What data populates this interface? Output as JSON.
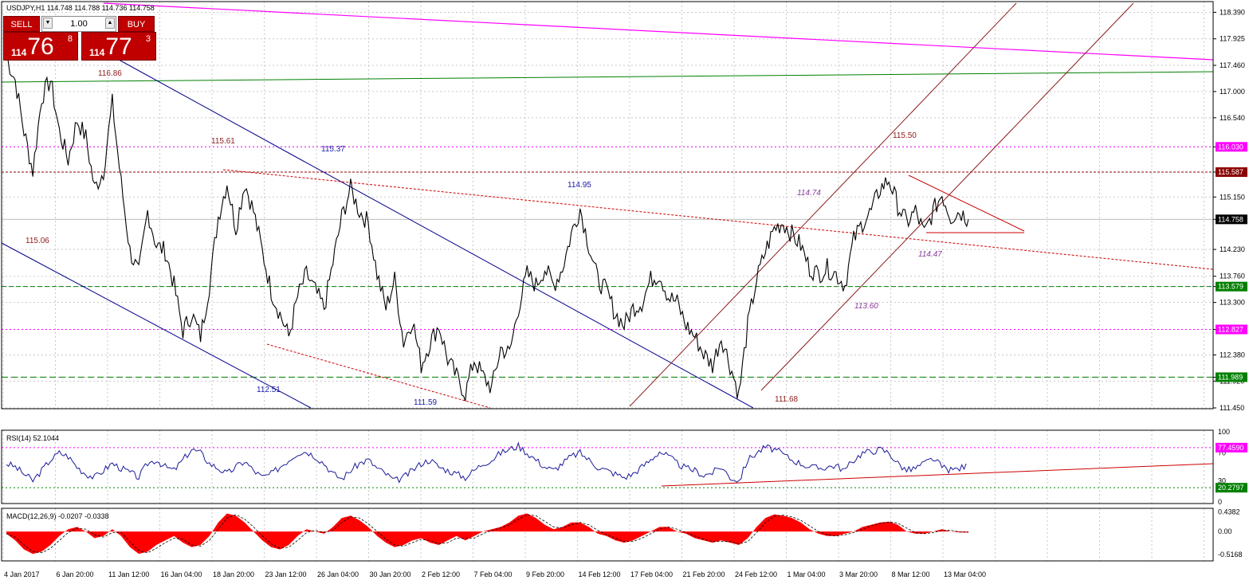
{
  "header": {
    "title": "USDJPY,H1",
    "ohlc": "114.748 114.788 114.736 114.758"
  },
  "trade_panel": {
    "sell_label": "SELL",
    "buy_label": "BUY",
    "lot": "1.00",
    "sell_prefix": "114",
    "sell_big": "76",
    "sell_pip": "8",
    "buy_prefix": "114",
    "buy_big": "77",
    "buy_pip": "3",
    "color": "#c00000"
  },
  "chart_data": [
    {
      "type": "line",
      "title": "USDJPY,H1",
      "ylim": [
        111.45,
        118.55
      ],
      "y_ticks": [
        "118.390",
        "117.925",
        "117.460",
        "117.000",
        "116.540",
        "116.030",
        "115.587",
        "115.150",
        "114.758",
        "114.230",
        "113.760",
        "113.579",
        "113.300",
        "112.827",
        "112.380",
        "111.989",
        "111.920",
        "111.450"
      ],
      "x_ticks": [
        "4 Jan 2017",
        "6 Jan 20:00",
        "11 Jan 12:00",
        "16 Jan 04:00",
        "18 Jan 20:00",
        "23 Jan 12:00",
        "26 Jan 04:00",
        "30 Jan 20:00",
        "2 Feb 12:00",
        "7 Feb 04:00",
        "9 Feb 20:00",
        "14 Feb 12:00",
        "17 Feb 04:00",
        "21 Feb 20:00",
        "24 Feb 12:00",
        "1 Mar 04:00",
        "3 Mar 20:00",
        "8 Mar 12:00",
        "13 Mar 04:00"
      ],
      "series": [
        {
          "values": [
            117.6,
            117.2,
            116.3,
            115.6,
            116.9,
            117.2,
            116.3,
            115.8,
            116.5,
            116.2,
            115.3,
            115.6,
            116.8,
            115.4,
            114.2,
            113.8,
            114.9,
            114.3,
            114.2,
            113.6,
            112.8,
            113.1,
            112.7,
            113.6,
            114.8,
            115.4,
            114.6,
            115.4,
            114.9,
            114.2,
            113.5,
            113.1,
            112.7,
            113.4,
            113.8,
            113.5,
            113.2,
            114.0,
            114.8,
            115.3,
            114.9,
            114.7,
            113.8,
            113.2,
            113.7,
            112.6,
            113.0,
            112.2,
            112.6,
            112.9,
            112.3,
            112.0,
            111.7,
            112.3,
            112.0,
            111.8,
            112.5,
            112.4,
            113.2,
            113.8,
            113.6,
            113.9,
            113.6,
            113.9,
            114.5,
            114.95,
            114.3,
            113.7,
            113.5,
            113.1,
            112.9,
            113.2,
            113.3,
            113.7,
            113.8,
            113.4,
            113.3,
            112.9,
            112.7,
            112.4,
            112.2,
            112.7,
            112.2,
            111.68,
            112.9,
            113.7,
            114.2,
            114.6,
            114.7,
            114.5,
            114.3,
            113.9,
            113.8,
            113.9,
            113.8,
            113.6,
            114.4,
            114.7,
            114.9,
            115.3,
            115.45,
            115.0,
            114.7,
            114.9,
            114.5,
            114.9,
            115.2,
            114.8,
            114.9,
            114.758
          ]
        }
      ],
      "annotations": [
        "116.86",
        "115.61",
        "115.37",
        "115.06",
        "114.95",
        "114.74",
        "114.47",
        "115.50",
        "113.60",
        "112.51",
        "111.59",
        "111.68"
      ],
      "price_tags": [
        {
          "label": "116.030",
          "price": 116.03,
          "color": "#ff00ff"
        },
        {
          "label": "115.587",
          "price": 115.587,
          "color": "#8b0000"
        },
        {
          "label": "114.758",
          "price": 114.758,
          "color": "#000000"
        },
        {
          "label": "113.579",
          "price": 113.579,
          "color": "#008000"
        },
        {
          "label": "112.827",
          "price": 112.827,
          "color": "#ff00ff"
        },
        {
          "label": "111.989",
          "price": 111.989,
          "color": "#008000"
        }
      ],
      "grid": true
    },
    {
      "type": "line",
      "title": "RSI(14) 52.1044",
      "ylim": [
        0,
        100
      ],
      "y_ticks": [
        "100",
        "70",
        "30",
        "0"
      ],
      "levels": [
        {
          "label": "77.4590",
          "value": 77.459,
          "color": "#ff00ff"
        },
        {
          "label": "20.2797",
          "value": 20.2797,
          "color": "#008000"
        }
      ],
      "series": [
        {
          "values": [
            55,
            50,
            40,
            30,
            45,
            60,
            70,
            65,
            50,
            40,
            35,
            45,
            55,
            48,
            42,
            35,
            55,
            60,
            50,
            45,
            60,
            75,
            70,
            55,
            48,
            40,
            50,
            58,
            45,
            35,
            40,
            50,
            60,
            70,
            72,
            65,
            55,
            40,
            33,
            45,
            55,
            60,
            48,
            40,
            30,
            35,
            45,
            55,
            60,
            50,
            45,
            40,
            35,
            45,
            55,
            60,
            70,
            75,
            80,
            70,
            60,
            50,
            45,
            55,
            65,
            70,
            60,
            50,
            45,
            40,
            35,
            40,
            50,
            60,
            72,
            65,
            55,
            48,
            45,
            38,
            42,
            50,
            35,
            30,
            60,
            70,
            78,
            75,
            68,
            60,
            55,
            50,
            48,
            50,
            52,
            45,
            60,
            70,
            72,
            75,
            70,
            55,
            45,
            48,
            55,
            62,
            50,
            45,
            48,
            52.1044
          ]
        }
      ],
      "grid": true
    },
    {
      "type": "area",
      "title": "MACD(12,26,9) -0.0207 -0.0338",
      "ylim": [
        -0.62,
        0.48
      ],
      "y_ticks": [
        "0.4382",
        "0.00",
        "-0.5168"
      ],
      "series": [
        {
          "values": [
            -0.05,
            -0.2,
            -0.4,
            -0.5,
            -0.45,
            -0.3,
            -0.1,
            0.05,
            0.1,
            0.0,
            -0.15,
            -0.1,
            0.05,
            -0.1,
            -0.35,
            -0.5,
            -0.45,
            -0.3,
            -0.2,
            -0.1,
            -0.25,
            -0.35,
            -0.3,
            -0.1,
            0.2,
            0.4,
            0.35,
            0.2,
            0.0,
            -0.2,
            -0.35,
            -0.4,
            -0.3,
            -0.1,
            0.05,
            0.0,
            -0.05,
            0.1,
            0.3,
            0.35,
            0.25,
            0.1,
            -0.1,
            -0.25,
            -0.35,
            -0.3,
            -0.2,
            -0.15,
            -0.25,
            -0.3,
            -0.2,
            -0.1,
            -0.2,
            -0.1,
            0.0,
            0.05,
            0.1,
            0.2,
            0.35,
            0.4,
            0.3,
            0.15,
            0.05,
            0.1,
            0.2,
            0.2,
            0.1,
            -0.05,
            -0.1,
            -0.2,
            -0.25,
            -0.2,
            -0.1,
            0.0,
            0.1,
            0.1,
            0.0,
            -0.05,
            -0.15,
            -0.2,
            -0.25,
            -0.2,
            -0.25,
            -0.3,
            -0.15,
            0.1,
            0.3,
            0.38,
            0.35,
            0.3,
            0.2,
            0.05,
            -0.05,
            -0.1,
            -0.1,
            -0.05,
            0.0,
            0.1,
            0.15,
            0.2,
            0.22,
            0.15,
            0.0,
            -0.05,
            -0.05,
            0.0,
            0.05,
            0.0,
            -0.02,
            -0.0207
          ]
        }
      ],
      "grid": true
    }
  ]
}
